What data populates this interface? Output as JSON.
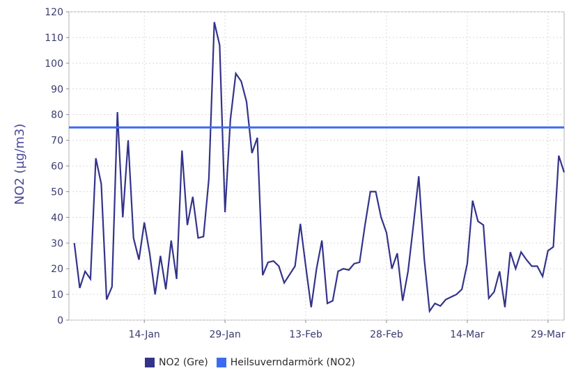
{
  "chart_data": {
    "type": "line",
    "title": "",
    "xlabel": "",
    "ylabel": "NO2 (µg/m3)",
    "ylim": [
      0,
      120
    ],
    "y_ticks": [
      0,
      10,
      20,
      30,
      40,
      50,
      60,
      70,
      80,
      90,
      100,
      110,
      120
    ],
    "x_ticks": [
      {
        "day": 14,
        "label": "14-Jan"
      },
      {
        "day": 29,
        "label": "29-Jan"
      },
      {
        "day": 44,
        "label": "13-Feb"
      },
      {
        "day": 59,
        "label": "28-Feb"
      },
      {
        "day": 74,
        "label": "14-Mar"
      },
      {
        "day": 89,
        "label": "29-Mar"
      }
    ],
    "xlim": [
      0,
      92
    ],
    "grid": true,
    "legend_position": "bottom",
    "series": [
      {
        "name": "NO2 (Gre)",
        "color": "#33338a",
        "points": [
          [
            1,
            30
          ],
          [
            2,
            12.5
          ],
          [
            3,
            19
          ],
          [
            4,
            16
          ],
          [
            5,
            63
          ],
          [
            6,
            53
          ],
          [
            7,
            8
          ],
          [
            8,
            13
          ],
          [
            9,
            81
          ],
          [
            10,
            40
          ],
          [
            11,
            70
          ],
          [
            12,
            32
          ],
          [
            13,
            23.5
          ],
          [
            14,
            38
          ],
          [
            15,
            26
          ],
          [
            16,
            10
          ],
          [
            17,
            25
          ],
          [
            18,
            12
          ],
          [
            19,
            31
          ],
          [
            20,
            16
          ],
          [
            21,
            66
          ],
          [
            22,
            37
          ],
          [
            23,
            48
          ],
          [
            24,
            32
          ],
          [
            25,
            32.5
          ],
          [
            26,
            55
          ],
          [
            27,
            116
          ],
          [
            28,
            107
          ],
          [
            29,
            42
          ],
          [
            30,
            78
          ],
          [
            31,
            96
          ],
          [
            32,
            93
          ],
          [
            33,
            85
          ],
          [
            34,
            65
          ],
          [
            35,
            71
          ],
          [
            36,
            17.5
          ],
          [
            37,
            22.5
          ],
          [
            38,
            23
          ],
          [
            39,
            21
          ],
          [
            40,
            14.5
          ],
          [
            42,
            21
          ],
          [
            43,
            37.5
          ],
          [
            44,
            21
          ],
          [
            45,
            5
          ],
          [
            46,
            20
          ],
          [
            47,
            31
          ],
          [
            48,
            6.5
          ],
          [
            49,
            7.5
          ],
          [
            50,
            19
          ],
          [
            51,
            20
          ],
          [
            52,
            19.5
          ],
          [
            53,
            22
          ],
          [
            54,
            22.5
          ],
          [
            55,
            37
          ],
          [
            56,
            50
          ],
          [
            57,
            50
          ],
          [
            58,
            40
          ],
          [
            59,
            34
          ],
          [
            60,
            20
          ],
          [
            61,
            26
          ],
          [
            62,
            7.5
          ],
          [
            63,
            19
          ],
          [
            64,
            37
          ],
          [
            65,
            56
          ],
          [
            66,
            24
          ],
          [
            67,
            3.5
          ],
          [
            68,
            6.5
          ],
          [
            69,
            5.5
          ],
          [
            70,
            8
          ],
          [
            71,
            9
          ],
          [
            72,
            10
          ],
          [
            73,
            12
          ],
          [
            74,
            22
          ],
          [
            75,
            46.5
          ],
          [
            76,
            38.5
          ],
          [
            77,
            37
          ],
          [
            78,
            8.5
          ],
          [
            79,
            11
          ],
          [
            80,
            19
          ],
          [
            81,
            5
          ],
          [
            82,
            26.5
          ],
          [
            83,
            20
          ],
          [
            84,
            26.5
          ],
          [
            85,
            23.5
          ],
          [
            86,
            21
          ],
          [
            87,
            21
          ],
          [
            88,
            17
          ],
          [
            89,
            27
          ],
          [
            90,
            28.5
          ],
          [
            91,
            64
          ],
          [
            92,
            57.5
          ]
        ]
      },
      {
        "name": "Heilsuverndarmörk (NO2)",
        "color": "#3b6cf0",
        "constant": 75
      }
    ]
  }
}
